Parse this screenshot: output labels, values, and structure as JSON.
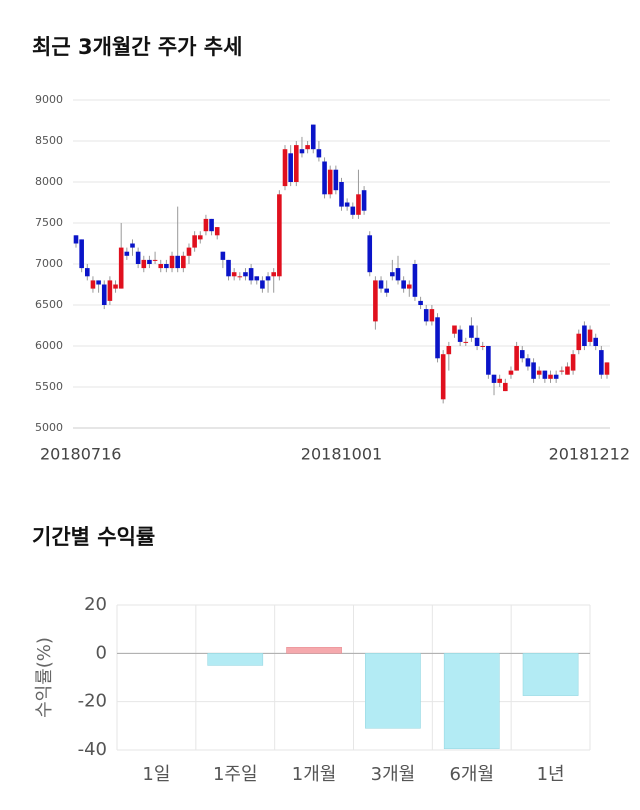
{
  "chart_data": [
    {
      "type": "candlestick",
      "title": "최근 3개월간 주가 추세",
      "categories": [
        "20180716",
        null,
        null,
        null,
        null,
        null,
        null,
        null,
        null,
        null,
        null,
        null,
        null,
        null,
        null,
        null,
        null,
        null,
        null,
        null,
        null,
        null,
        null,
        null,
        null,
        null,
        null,
        null,
        null,
        null,
        null,
        null,
        null,
        null,
        null,
        null,
        null,
        null,
        null,
        null,
        null,
        null,
        null,
        null,
        null,
        null,
        null,
        "20181001",
        null,
        null,
        null,
        null,
        null,
        null,
        null,
        null,
        null,
        null,
        null,
        null,
        null,
        null,
        null,
        null,
        null,
        null,
        null,
        null,
        null,
        null,
        null,
        null,
        null,
        null,
        null,
        null,
        null,
        null,
        null,
        null,
        null,
        null,
        null,
        null,
        null,
        null,
        null,
        null,
        null,
        null,
        null,
        null,
        null,
        null,
        "20181212"
      ],
      "open": [
        7350,
        7300,
        6950,
        6700,
        6800,
        6750,
        6550,
        6700,
        6700,
        7150,
        7250,
        7150,
        6950,
        7050,
        7050,
        6950,
        7000,
        6950,
        7100,
        6950,
        7100,
        7200,
        7300,
        7400,
        7550,
        7350,
        7150,
        7050,
        6850,
        6850,
        6900,
        6950,
        6850,
        6800,
        6850,
        6850,
        6850,
        7950,
        8350,
        8000,
        8400,
        8400,
        8700,
        8400,
        8250,
        7850,
        8150,
        8000,
        7750,
        7700,
        7600,
        7900,
        7350,
        6300,
        6800,
        6700,
        6900,
        6950,
        6800,
        6700,
        7000,
        6550,
        6450,
        6300,
        6350,
        5350,
        5900,
        6150,
        6200,
        6050,
        6250,
        6100,
        6000,
        6000,
        5650,
        5550,
        5450,
        5650,
        5700,
        5950,
        5850,
        5800,
        5650,
        5700,
        5600,
        5650,
        5700,
        5650,
        5700,
        5950,
        6250,
        6050,
        6100,
        5950,
        5650
      ],
      "high": [
        7350,
        7300,
        7000,
        6850,
        6800,
        6800,
        6850,
        6800,
        7500,
        7200,
        7300,
        7200,
        7100,
        7100,
        7150,
        7050,
        7050,
        7150,
        7700,
        7150,
        7250,
        7400,
        7400,
        7600,
        7550,
        7450,
        7150,
        7050,
        6950,
        6900,
        6950,
        7000,
        6850,
        6850,
        6900,
        6950,
        7900,
        8450,
        8450,
        8500,
        8550,
        8500,
        8700,
        8500,
        8300,
        8200,
        8200,
        8050,
        7800,
        7750,
        8150,
        7950,
        7400,
        6850,
        6850,
        6800,
        7050,
        7100,
        6850,
        6800,
        7050,
        6600,
        6500,
        6500,
        6400,
        5950,
        6050,
        6250,
        6250,
        6100,
        6350,
        6250,
        6050,
        6000,
        5650,
        5650,
        5600,
        5750,
        6050,
        6000,
        5900,
        5850,
        5750,
        5700,
        5700,
        5700,
        5750,
        5800,
        5950,
        6200,
        6300,
        6250,
        6150,
        6000,
        5800
      ],
      "low": [
        7200,
        6900,
        6800,
        6650,
        6650,
        6450,
        6500,
        6650,
        6700,
        7050,
        7100,
        6950,
        6900,
        6950,
        7000,
        6900,
        6900,
        6900,
        6900,
        6900,
        7000,
        7150,
        7250,
        7350,
        7350,
        7300,
        6950,
        6800,
        6800,
        6800,
        6800,
        6750,
        6750,
        6650,
        6650,
        6650,
        6800,
        7900,
        7950,
        7950,
        8300,
        8350,
        8350,
        8250,
        7800,
        7800,
        7850,
        7650,
        7650,
        7550,
        7550,
        7600,
        6850,
        6200,
        6650,
        6600,
        6800,
        6750,
        6650,
        6600,
        6550,
        6450,
        6250,
        6250,
        5800,
        5300,
        5700,
        6100,
        6000,
        6000,
        6050,
        5950,
        5950,
        5600,
        5400,
        5500,
        5450,
        5600,
        5700,
        5800,
        5700,
        5550,
        5600,
        5550,
        5550,
        5550,
        5650,
        5650,
        5650,
        5900,
        5950,
        6000,
        5950,
        5600,
        5600
      ],
      "close": [
        7250,
        6950,
        6850,
        6800,
        6750,
        6500,
        6800,
        6750,
        7200,
        7100,
        7200,
        7000,
        7050,
        7000,
        7050,
        7000,
        6950,
        7100,
        6950,
        7100,
        7200,
        7350,
        7350,
        7550,
        7400,
        7450,
        7050,
        6850,
        6900,
        6850,
        6850,
        6800,
        6800,
        6700,
        6800,
        6900,
        7850,
        8400,
        8000,
        8450,
        8350,
        8450,
        8400,
        8300,
        7850,
        8150,
        7900,
        7700,
        7700,
        7600,
        7850,
        7650,
        6900,
        6800,
        6700,
        6650,
        6850,
        6800,
        6700,
        6750,
        6600,
        6500,
        6300,
        6450,
        5850,
        5900,
        6000,
        6250,
        6050,
        6050,
        6100,
        6000,
        6000,
        5650,
        5550,
        5600,
        5550,
        5700,
        6000,
        5850,
        5750,
        5600,
        5700,
        5600,
        5650,
        5600,
        5700,
        5750,
        5900,
        6150,
        6000,
        6200,
        6000,
        5650,
        5800
      ],
      "up_color": "#e0101e",
      "down_color": "#0a14c8",
      "ylim": [
        5000,
        9000
      ],
      "yticks": [
        5000,
        5500,
        6000,
        6500,
        7000,
        7500,
        8000,
        8500,
        9000
      ],
      "grid": true
    },
    {
      "type": "bar",
      "title": "기간별 수익률",
      "y_label": "수익률(%)",
      "categories": [
        "1일",
        "1주일",
        "1개월",
        "3개월",
        "6개월",
        "1년"
      ],
      "values": [
        0,
        -5,
        2.5,
        -31,
        -39.5,
        -17.5
      ],
      "positive_color": "#f5a9ad",
      "negative_color": "#b3ebf4",
      "ylim": [
        -40,
        20
      ],
      "yticks": [
        20,
        0,
        -20,
        -40
      ],
      "grid": true
    }
  ]
}
